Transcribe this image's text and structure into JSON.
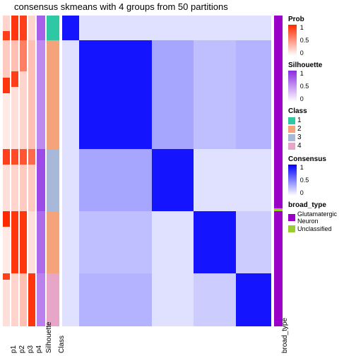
{
  "title": "consensus skmeans with 4 groups from 50 partitions",
  "colors": {
    "prob_low": "#ffffff",
    "prob_high": "#ff2a00",
    "sil_low": "#ffffff",
    "sil_high": "#8a2be2",
    "consensus_low": "#ffffff",
    "consensus_high": "#0000ff",
    "class_1": "#2fc8a5",
    "class_2": "#f5a37a",
    "class_3": "#a7b8d8",
    "class_4": "#e7a6c8",
    "bt_glut": "#9b00c9",
    "bt_unclass": "#9acd32",
    "grid_bg": "#ffffff"
  },
  "anno_labels": [
    "p1",
    "p2",
    "p3",
    "p4",
    "Silhouette",
    "Class"
  ],
  "right_anno_label": "broad_type",
  "legends": {
    "prob": {
      "title": "Prob",
      "ticks": [
        "1",
        "0.5",
        "0"
      ]
    },
    "sil": {
      "title": "Silhouette",
      "ticks": [
        "1",
        "0.5",
        "0"
      ]
    },
    "class": {
      "title": "Class",
      "items": [
        "1",
        "2",
        "3",
        "4"
      ]
    },
    "consensus": {
      "title": "Consensus",
      "ticks": [
        "1",
        "0.5",
        "0"
      ]
    },
    "broad_type": {
      "title": "broad_type",
      "items": [
        "Glutamatergic Neuron",
        "Unclassified"
      ]
    }
  },
  "class_block_fracs": [
    0.08,
    0.35,
    0.2,
    0.2,
    0.17
  ],
  "class_block_colors": [
    "class_1",
    "class_2",
    "class_3",
    "class_2",
    "class_4"
  ],
  "bt_segments": [
    {
      "frac": 0.62,
      "c": "bt_glut"
    },
    {
      "frac": 0.01,
      "c": "bt_unclass"
    },
    {
      "frac": 0.37,
      "c": "bt_glut"
    }
  ],
  "p_columns": [
    [
      {
        "f": 0.05,
        "v": 0.2
      },
      {
        "f": 0.03,
        "v": 0.9
      },
      {
        "f": 0.12,
        "v": 0.25
      },
      {
        "f": 0.05,
        "v": 0.95
      },
      {
        "f": 0.18,
        "v": 0.1
      },
      {
        "f": 0.05,
        "v": 0.9
      },
      {
        "f": 0.15,
        "v": 0.15
      },
      {
        "f": 0.05,
        "v": 1.0
      },
      {
        "f": 0.15,
        "v": 0.1
      },
      {
        "f": 0.02,
        "v": 0.9
      },
      {
        "f": 0.15,
        "v": 0.15
      }
    ],
    [
      {
        "f": 0.08,
        "v": 0.95
      },
      {
        "f": 0.1,
        "v": 0.3
      },
      {
        "f": 0.05,
        "v": 0.9
      },
      {
        "f": 0.2,
        "v": 0.15
      },
      {
        "f": 0.05,
        "v": 0.85
      },
      {
        "f": 0.15,
        "v": 0.2
      },
      {
        "f": 0.2,
        "v": 0.95
      },
      {
        "f": 0.17,
        "v": 0.2
      }
    ],
    [
      {
        "f": 0.08,
        "v": 0.9
      },
      {
        "f": 0.1,
        "v": 0.6
      },
      {
        "f": 0.25,
        "v": 0.2
      },
      {
        "f": 0.05,
        "v": 0.8
      },
      {
        "f": 0.15,
        "v": 0.25
      },
      {
        "f": 0.2,
        "v": 0.95
      },
      {
        "f": 0.17,
        "v": 0.3
      }
    ],
    [
      {
        "f": 0.08,
        "v": 0.2
      },
      {
        "f": 0.35,
        "v": 0.3
      },
      {
        "f": 0.05,
        "v": 0.7
      },
      {
        "f": 0.15,
        "v": 0.25
      },
      {
        "f": 0.2,
        "v": 0.15
      },
      {
        "f": 0.17,
        "v": 0.95
      }
    ]
  ],
  "sil_segments": [
    {
      "f": 0.08,
      "v": 0.75
    },
    {
      "f": 0.35,
      "v": 0.55
    },
    {
      "f": 0.2,
      "v": 0.85
    },
    {
      "f": 0.2,
      "v": 0.7
    },
    {
      "f": 0.17,
      "v": 0.6
    }
  ],
  "heatmap_blocks": {
    "fracs": [
      0.08,
      0.35,
      0.2,
      0.2,
      0.17
    ],
    "off_diag_intensity": 0.12,
    "diag_intensity": 0.92,
    "noise_pairs": [
      [
        1,
        2,
        0.35
      ],
      [
        2,
        1,
        0.35
      ],
      [
        1,
        3,
        0.25
      ],
      [
        3,
        1,
        0.25
      ],
      [
        1,
        4,
        0.3
      ],
      [
        4,
        1,
        0.3
      ],
      [
        3,
        4,
        0.2
      ],
      [
        4,
        3,
        0.2
      ]
    ]
  }
}
